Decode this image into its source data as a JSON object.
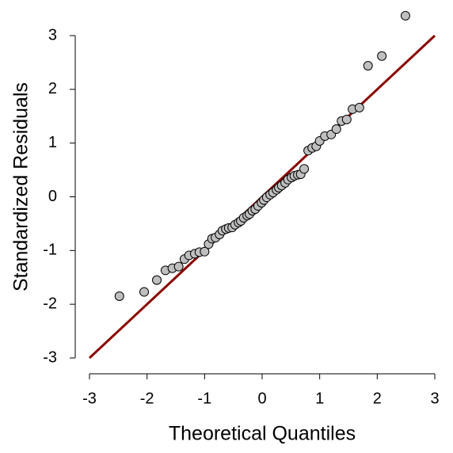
{
  "chart_data": {
    "type": "scatter",
    "xlabel": "Theoretical Quantiles",
    "ylabel": "Standardized Residuals",
    "x": [
      -2.48,
      -2.05,
      -1.83,
      -1.68,
      -1.56,
      -1.45,
      -1.35,
      -1.27,
      -1.17,
      -1.09,
      -1.0,
      -0.93,
      -0.87,
      -0.81,
      -0.74,
      -0.69,
      -0.63,
      -0.58,
      -0.52,
      -0.47,
      -0.41,
      -0.37,
      -0.32,
      -0.26,
      -0.22,
      -0.17,
      -0.12,
      -0.07,
      -0.01,
      0.03,
      0.08,
      0.14,
      0.19,
      0.25,
      0.29,
      0.34,
      0.4,
      0.45,
      0.51,
      0.56,
      0.62,
      0.67,
      0.73,
      0.8,
      0.87,
      0.94,
      1.0,
      1.09,
      1.2,
      1.29,
      1.38,
      1.47,
      1.57,
      1.69,
      1.84,
      2.08,
      2.49
    ],
    "values": [
      -1.85,
      -1.77,
      -1.55,
      -1.37,
      -1.33,
      -1.3,
      -1.16,
      -1.09,
      -1.06,
      -1.03,
      -1.02,
      -0.88,
      -0.78,
      -0.76,
      -0.7,
      -0.63,
      -0.6,
      -0.58,
      -0.57,
      -0.52,
      -0.48,
      -0.45,
      -0.39,
      -0.35,
      -0.32,
      -0.26,
      -0.23,
      -0.17,
      -0.11,
      -0.06,
      -0.01,
      0.04,
      0.08,
      0.13,
      0.17,
      0.21,
      0.26,
      0.32,
      0.36,
      0.39,
      0.41,
      0.42,
      0.52,
      0.86,
      0.91,
      0.94,
      1.04,
      1.13,
      1.16,
      1.26,
      1.41,
      1.44,
      1.63,
      1.66,
      2.44,
      2.62,
      3.37
    ],
    "color": "#bfbfbf",
    "reference_line_color": "#8b0000",
    "xlim": [
      -3,
      3
    ],
    "xticks": [
      -3,
      -2,
      -1,
      0,
      1,
      2,
      3
    ],
    "ylim": [
      -3,
      3
    ],
    "yticks": [
      -3,
      -2,
      -1,
      0,
      1,
      2,
      3
    ]
  }
}
